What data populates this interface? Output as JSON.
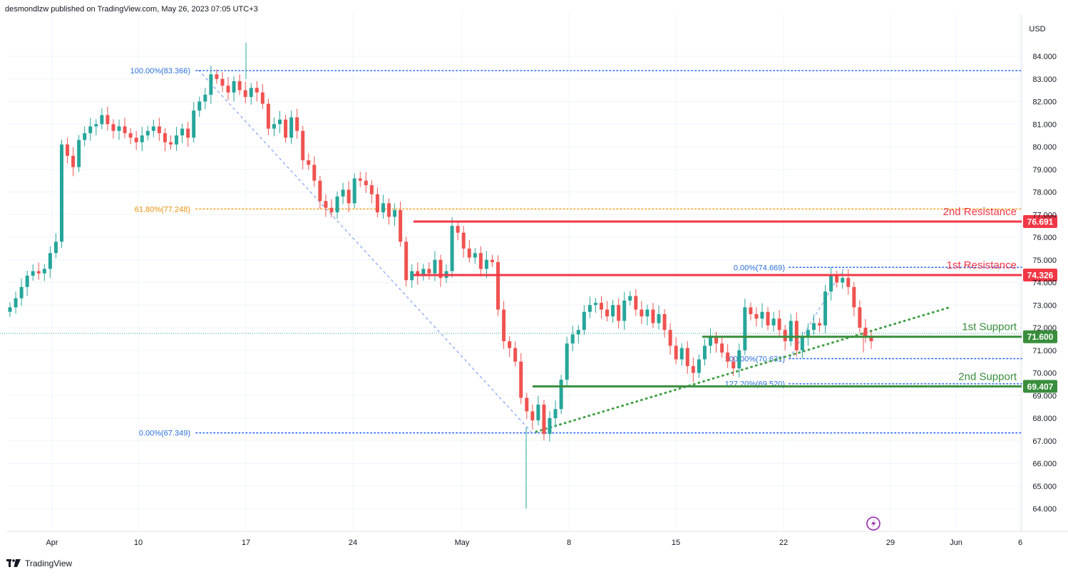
{
  "header": {
    "published_by": "desmondlzw published on TradingView.com, May 26, 2023 07:05 UTC+3"
  },
  "footer": {
    "brand": "TradingView",
    "logo_icon": "tradingview-logo-icon"
  },
  "colors": {
    "bull": "#26a69a",
    "bear": "#ef5350",
    "resistance": "#f23645",
    "support": "#388e3c",
    "fib_blue": "#2962ff",
    "fib_orange": "#f59d1a",
    "fib_text_blue": "#2a6fdb",
    "trend_green": "#43a047",
    "grid": "#f0f3fa",
    "axis_text": "#131722",
    "lightning": "#9c27b0"
  },
  "chart_data": {
    "type": "candlestick",
    "symbol_currency": "USD",
    "y_ticks": [
      "84.000",
      "83.000",
      "82.000",
      "81.000",
      "80.000",
      "79.000",
      "78.000",
      "77.000",
      "76.000",
      "75.000",
      "74.000",
      "73.000",
      "72.000",
      "71.000",
      "70.000",
      "69.000",
      "68.000",
      "67.000",
      "66.000",
      "65.000",
      "64.000"
    ],
    "x_ticks": [
      "Apr",
      "10",
      "17",
      "24",
      "May",
      "8",
      "15",
      "22",
      "29",
      "Jun",
      "6"
    ],
    "ylim": [
      63.4,
      85.3
    ],
    "levels": [
      {
        "name": "2nd Resistance",
        "price": 76.691,
        "badge": "76.691",
        "kind": "resistance"
      },
      {
        "name": "1st Resistance",
        "price": 74.326,
        "badge": "74.326",
        "kind": "resistance"
      },
      {
        "name": "1st Support",
        "price": 71.6,
        "badge": "71.600",
        "kind": "support"
      },
      {
        "name": "2nd Support",
        "price": 69.407,
        "badge": "69.407",
        "kind": "support"
      }
    ],
    "fib_labels": [
      {
        "text": "100.00%(83.366)",
        "price": 83.366,
        "color": "blue"
      },
      {
        "text": "61.80%(77.248)",
        "price": 77.248,
        "color": "orange"
      },
      {
        "text": "0.00%(67.349)",
        "price": 67.349,
        "color": "blue"
      },
      {
        "text": "0.00%(74.669)",
        "price": 74.669,
        "color": "blue"
      },
      {
        "text": "100.00%(70.631)",
        "price": 70.631,
        "color": "blue"
      },
      {
        "text": "127.20%(69.520)",
        "price": 69.52,
        "color": "blue"
      }
    ],
    "current_price_line": 71.75,
    "candles_close": [
      72.9,
      73.3,
      73.8,
      74.3,
      74.5,
      74.4,
      74.6,
      75.3,
      75.8,
      80.1,
      79.6,
      79.1,
      80.3,
      80.6,
      80.9,
      81.0,
      81.4,
      81.0,
      80.7,
      80.9,
      80.6,
      80.4,
      80.2,
      80.5,
      80.7,
      80.9,
      80.6,
      80.2,
      80.1,
      80.5,
      80.8,
      80.4,
      81.6,
      82.0,
      82.3,
      83.2,
      83.0,
      82.7,
      82.4,
      82.9,
      82.5,
      82.2,
      82.6,
      82.4,
      81.9,
      80.8,
      81.0,
      81.2,
      80.4,
      81.3,
      80.7,
      79.4,
      79.2,
      78.5,
      77.6,
      77.3,
      77.1,
      77.8,
      78.1,
      77.5,
      78.6,
      78.5,
      78.3,
      77.9,
      77.1,
      77.5,
      76.9,
      77.2,
      75.8,
      74.1,
      74.5,
      74.3,
      74.6,
      74.4,
      75.0,
      74.2,
      74.5,
      76.5,
      76.2,
      75.5,
      75.1,
      75.3,
      74.6,
      75.0,
      74.9,
      72.8,
      71.4,
      71.1,
      70.5,
      68.9,
      68.3,
      67.9,
      68.6,
      67.3,
      68.0,
      68.4,
      69.7,
      71.3,
      71.7,
      71.9,
      72.7,
      73.0,
      73.1,
      72.8,
      72.5,
      73.0,
      72.3,
      73.2,
      73.4,
      72.8,
      72.5,
      72.8,
      72.2,
      72.6,
      71.9,
      71.2,
      70.6,
      71.1,
      70.3,
      70.0,
      70.6,
      71.2,
      71.6,
      71.3,
      70.9,
      70.5,
      70.2,
      71.0,
      72.9,
      72.6,
      72.4,
      72.7,
      72.1,
      72.4,
      71.9,
      71.4,
      72.3,
      71.0,
      71.6,
      71.9,
      72.2,
      72.1,
      73.6,
      74.3,
      74.0,
      74.2,
      73.8,
      72.9,
      72.0,
      71.6,
      71.4
    ]
  }
}
